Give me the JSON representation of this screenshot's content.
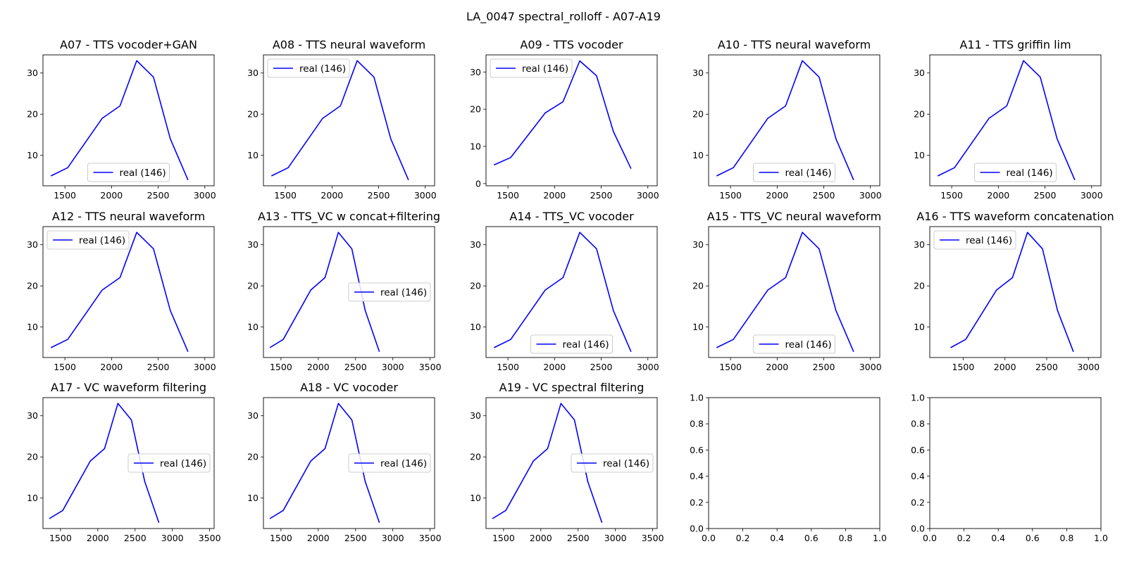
{
  "figure": {
    "suptitle": "LA_0047 spectral_rolloff - A07-A19"
  },
  "chart_data": [
    {
      "type": "line",
      "title": "A07 - TTS vocoder+GAN",
      "x": [
        1350,
        1530,
        1900,
        2090,
        2270,
        2450,
        2630,
        2820
      ],
      "series": [
        {
          "name": "real (146)",
          "color": "#0000ff",
          "values": [
            5,
            7,
            19,
            22,
            33,
            29,
            14,
            4
          ]
        }
      ],
      "xlim": [
        1265,
        3100
      ],
      "ylim": [
        2.6,
        34.4
      ],
      "xticks": [
        1500,
        2000,
        2500,
        3000
      ],
      "yticks": [
        10,
        20,
        30
      ],
      "legend": "lower-center"
    },
    {
      "type": "line",
      "title": "A08 - TTS neural waveform",
      "x": [
        1350,
        1530,
        1900,
        2090,
        2270,
        2450,
        2630,
        2820
      ],
      "series": [
        {
          "name": "real (146)",
          "color": "#0000ff",
          "values": [
            5,
            7,
            19,
            22,
            33,
            29,
            14,
            4
          ]
        }
      ],
      "xlim": [
        1265,
        3100
      ],
      "ylim": [
        2.6,
        34.4
      ],
      "xticks": [
        1500,
        2000,
        2500,
        3000
      ],
      "yticks": [
        10,
        20,
        30
      ],
      "legend": "upper-left"
    },
    {
      "type": "line",
      "title": "A09 - TTS vocoder",
      "x": [
        1350,
        1530,
        1900,
        2090,
        2270,
        2450,
        2630,
        2820
      ],
      "series": [
        {
          "name": "real (146)",
          "color": "#0000ff",
          "values": [
            5,
            7,
            19,
            22,
            33,
            29,
            14,
            4
          ]
        }
      ],
      "xlim": [
        1265,
        3100
      ],
      "ylim": [
        -0.6,
        34.6
      ],
      "xticks": [
        1500,
        2000,
        2500,
        3000
      ],
      "yticks": [
        0,
        10,
        20,
        30
      ],
      "legend": "upper-left"
    },
    {
      "type": "line",
      "title": "A10 - TTS neural waveform",
      "x": [
        1350,
        1530,
        1900,
        2090,
        2270,
        2450,
        2630,
        2820
      ],
      "series": [
        {
          "name": "real (146)",
          "color": "#0000ff",
          "values": [
            5,
            7,
            19,
            22,
            33,
            29,
            14,
            4
          ]
        }
      ],
      "xlim": [
        1265,
        3100
      ],
      "ylim": [
        2.6,
        34.4
      ],
      "xticks": [
        1500,
        2000,
        2500,
        3000
      ],
      "yticks": [
        10,
        20,
        30
      ],
      "legend": "lower-center"
    },
    {
      "type": "line",
      "title": "A11 - TTS griffin lim",
      "x": [
        1350,
        1530,
        1900,
        2090,
        2270,
        2450,
        2630,
        2820
      ],
      "series": [
        {
          "name": "real (146)",
          "color": "#0000ff",
          "values": [
            5,
            7,
            19,
            22,
            33,
            29,
            14,
            4
          ]
        }
      ],
      "xlim": [
        1265,
        3100
      ],
      "ylim": [
        2.6,
        34.4
      ],
      "xticks": [
        1500,
        2000,
        2500,
        3000
      ],
      "yticks": [
        10,
        20,
        30
      ],
      "legend": "lower-center"
    },
    {
      "type": "line",
      "title": "A12 - TTS neural waveform",
      "x": [
        1350,
        1530,
        1900,
        2090,
        2270,
        2450,
        2630,
        2820
      ],
      "series": [
        {
          "name": "real (146)",
          "color": "#0000ff",
          "values": [
            5,
            7,
            19,
            22,
            33,
            29,
            14,
            4
          ]
        }
      ],
      "xlim": [
        1265,
        3100
      ],
      "ylim": [
        2.6,
        34.4
      ],
      "xticks": [
        1500,
        2000,
        2500,
        3000
      ],
      "yticks": [
        10,
        20,
        30
      ],
      "legend": "upper-left"
    },
    {
      "type": "line",
      "title": "A13 - TTS_VC w concat+filtering",
      "x": [
        1350,
        1530,
        1900,
        2090,
        2270,
        2450,
        2630,
        2820
      ],
      "series": [
        {
          "name": "real (146)",
          "color": "#0000ff",
          "values": [
            5,
            7,
            19,
            22,
            33,
            29,
            14,
            4
          ]
        }
      ],
      "xlim": [
        1265,
        3560
      ],
      "ylim": [
        2.6,
        34.4
      ],
      "xticks": [
        1500,
        2000,
        2500,
        3000,
        3500
      ],
      "yticks": [
        10,
        20,
        30
      ],
      "legend": "center-right"
    },
    {
      "type": "line",
      "title": "A14 - TTS_VC vocoder",
      "x": [
        1350,
        1530,
        1900,
        2090,
        2270,
        2450,
        2630,
        2820
      ],
      "series": [
        {
          "name": "real (146)",
          "color": "#0000ff",
          "values": [
            5,
            7,
            19,
            22,
            33,
            29,
            14,
            4
          ]
        }
      ],
      "xlim": [
        1265,
        3100
      ],
      "ylim": [
        2.6,
        34.4
      ],
      "xticks": [
        1500,
        2000,
        2500,
        3000
      ],
      "yticks": [
        10,
        20,
        30
      ],
      "legend": "lower-center"
    },
    {
      "type": "line",
      "title": "A15 - TTS_VC neural waveform",
      "x": [
        1350,
        1530,
        1900,
        2090,
        2270,
        2450,
        2630,
        2820
      ],
      "series": [
        {
          "name": "real (146)",
          "color": "#0000ff",
          "values": [
            5,
            7,
            19,
            22,
            33,
            29,
            14,
            4
          ]
        }
      ],
      "xlim": [
        1265,
        3100
      ],
      "ylim": [
        2.6,
        34.4
      ],
      "xticks": [
        1500,
        2000,
        2500,
        3000
      ],
      "yticks": [
        10,
        20,
        30
      ],
      "legend": "lower-center"
    },
    {
      "type": "line",
      "title": "A16 - TTS waveform concatenation",
      "x": [
        1350,
        1530,
        1900,
        2090,
        2270,
        2450,
        2630,
        2820
      ],
      "series": [
        {
          "name": "real (146)",
          "color": "#0000ff",
          "values": [
            5,
            7,
            19,
            22,
            33,
            29,
            14,
            4
          ]
        }
      ],
      "xlim": [
        1100,
        3150
      ],
      "ylim": [
        2.6,
        34.4
      ],
      "xticks": [
        1500,
        2000,
        2500,
        3000
      ],
      "yticks": [
        10,
        20,
        30
      ],
      "legend": "upper-left"
    },
    {
      "type": "line",
      "title": "A17 - VC waveform filtering",
      "x": [
        1350,
        1530,
        1900,
        2090,
        2270,
        2450,
        2630,
        2820
      ],
      "series": [
        {
          "name": "real (146)",
          "color": "#0000ff",
          "values": [
            5,
            7,
            19,
            22,
            33,
            29,
            14,
            4
          ]
        }
      ],
      "xlim": [
        1265,
        3560
      ],
      "ylim": [
        2.6,
        34.4
      ],
      "xticks": [
        1500,
        2000,
        2500,
        3000,
        3500
      ],
      "yticks": [
        10,
        20,
        30
      ],
      "legend": "center-right"
    },
    {
      "type": "line",
      "title": "A18 - VC vocoder",
      "x": [
        1350,
        1530,
        1900,
        2090,
        2270,
        2450,
        2630,
        2820
      ],
      "series": [
        {
          "name": "real (146)",
          "color": "#0000ff",
          "values": [
            5,
            7,
            19,
            22,
            33,
            29,
            14,
            4
          ]
        }
      ],
      "xlim": [
        1265,
        3560
      ],
      "ylim": [
        2.6,
        34.4
      ],
      "xticks": [
        1500,
        2000,
        2500,
        3000,
        3500
      ],
      "yticks": [
        10,
        20,
        30
      ],
      "legend": "center-right"
    },
    {
      "type": "line",
      "title": "A19 - VC spectral filtering",
      "x": [
        1350,
        1530,
        1900,
        2090,
        2270,
        2450,
        2630,
        2820
      ],
      "series": [
        {
          "name": "real (146)",
          "color": "#0000ff",
          "values": [
            5,
            7,
            19,
            22,
            33,
            29,
            14,
            4
          ]
        }
      ],
      "xlim": [
        1265,
        3560
      ],
      "ylim": [
        2.6,
        34.4
      ],
      "xticks": [
        1500,
        2000,
        2500,
        3000,
        3500
      ],
      "yticks": [
        10,
        20,
        30
      ],
      "legend": "center-right"
    },
    {
      "type": "line",
      "title": "",
      "x": [],
      "series": [],
      "xlim": [
        0,
        1
      ],
      "ylim": [
        0,
        1
      ],
      "xticks": [
        0.0,
        0.2,
        0.4,
        0.6,
        0.8,
        1.0
      ],
      "yticks": [
        0.0,
        0.2,
        0.4,
        0.6,
        0.8,
        1.0
      ],
      "tick_format": "1dp",
      "legend": "none"
    },
    {
      "type": "line",
      "title": "",
      "x": [],
      "series": [],
      "xlim": [
        0,
        1
      ],
      "ylim": [
        0,
        1
      ],
      "xticks": [
        0.0,
        0.2,
        0.4,
        0.6,
        0.8,
        1.0
      ],
      "yticks": [
        0.0,
        0.2,
        0.4,
        0.6,
        0.8,
        1.0
      ],
      "tick_format": "1dp",
      "legend": "none"
    }
  ]
}
